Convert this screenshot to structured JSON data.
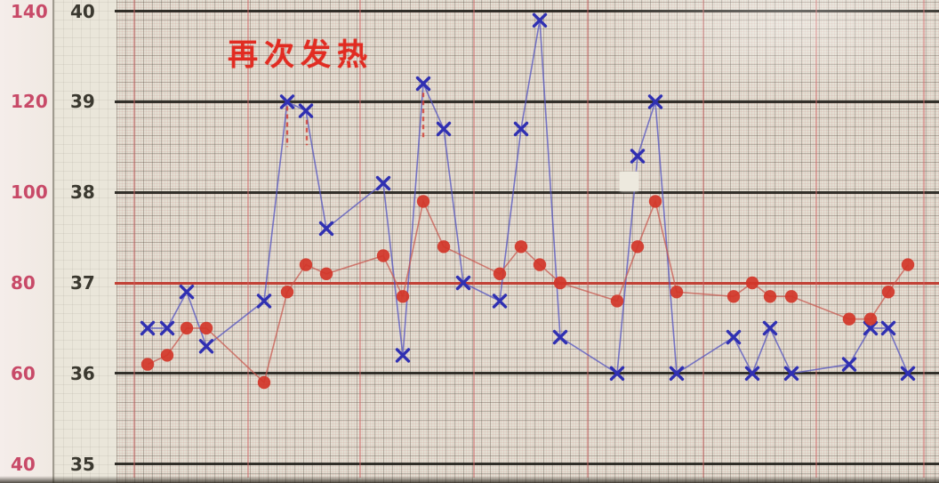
{
  "annotation": {
    "text": "再次发热",
    "color": "#e12c22"
  },
  "axes": {
    "pulse": {
      "labels": [
        "140",
        "120",
        "100",
        "80",
        "60",
        "40"
      ],
      "color": "#c84a68"
    },
    "temperature": {
      "labels": [
        "40",
        "39",
        "38",
        "37",
        "36",
        "35"
      ],
      "color": "#3b3930"
    }
  },
  "chart_data": {
    "type": "line",
    "title": "再次发热",
    "x_axis_labels_visible": false,
    "points_format": "[x_px, value]",
    "temperature_axis_range": [
      35,
      40
    ],
    "pulse_axis_range": [
      40,
      140
    ],
    "reference_lines": {
      "temperature_black_bold": [
        40,
        39,
        38,
        36,
        35
      ],
      "temperature_red_bold": [
        37
      ]
    },
    "series": [
      {
        "name": "temperature",
        "marker": "x-marker",
        "axis": "temperature",
        "color": "#3030b2",
        "line_color": "#5353c0",
        "points": [
          [
            166,
            36.5
          ],
          [
            188,
            36.5
          ],
          [
            210,
            36.9
          ],
          [
            232,
            36.3
          ],
          [
            297,
            36.8
          ],
          [
            323,
            39.0
          ],
          [
            344,
            38.9
          ],
          [
            367,
            37.6
          ],
          [
            431,
            38.1
          ],
          [
            453,
            36.2
          ],
          [
            476,
            39.2
          ],
          [
            499,
            38.7
          ],
          [
            521,
            37.0
          ],
          [
            562,
            36.8
          ],
          [
            586,
            38.7
          ],
          [
            607,
            39.9
          ],
          [
            630,
            36.4
          ],
          [
            694,
            36.0
          ],
          [
            717,
            38.4
          ],
          [
            737,
            39.0
          ],
          [
            761,
            36.0
          ],
          [
            825,
            36.4
          ],
          [
            846,
            36.0
          ],
          [
            866,
            36.5
          ],
          [
            890,
            36.0
          ],
          [
            955,
            36.1
          ],
          [
            979,
            36.5
          ],
          [
            999,
            36.5
          ],
          [
            1021,
            36.0
          ]
        ]
      },
      {
        "name": "pulse",
        "marker": "dot-marker",
        "axis": "pulse",
        "color": "#d23528",
        "line_color": "#c85a50",
        "points": [
          [
            166,
            62
          ],
          [
            188,
            64
          ],
          [
            210,
            70
          ],
          [
            232,
            70
          ],
          [
            297,
            58
          ],
          [
            323,
            78
          ],
          [
            344,
            84
          ],
          [
            367,
            82
          ],
          [
            431,
            86
          ],
          [
            453,
            77
          ],
          [
            476,
            98
          ],
          [
            499,
            88
          ],
          [
            562,
            82
          ],
          [
            586,
            88
          ],
          [
            607,
            84
          ],
          [
            630,
            80
          ],
          [
            694,
            76
          ],
          [
            717,
            88
          ],
          [
            737,
            98
          ],
          [
            761,
            78
          ],
          [
            825,
            77
          ],
          [
            846,
            80
          ],
          [
            866,
            77
          ],
          [
            890,
            77
          ],
          [
            955,
            72
          ],
          [
            979,
            72
          ],
          [
            999,
            78
          ],
          [
            1021,
            84
          ]
        ]
      }
    ],
    "cooling_marks": [
      {
        "x": 323,
        "from": 38.95,
        "to": 38.5
      },
      {
        "x": 345,
        "from": 38.8,
        "to": 38.52
      },
      {
        "x": 476,
        "from": 39.1,
        "to": 38.58
      }
    ]
  }
}
